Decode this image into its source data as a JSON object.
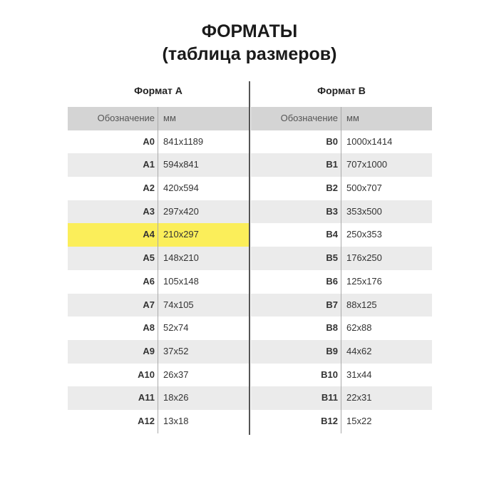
{
  "title": "ФОРМАТЫ",
  "subtitle": "(таблица размеров)",
  "tables": [
    {
      "caption": "Формат A",
      "col1": "Обозначение",
      "col2": "мм",
      "highlight_color": "#fbee5a",
      "highlighted": "A4",
      "rows": [
        [
          "A0",
          "841x1189"
        ],
        [
          "A1",
          "594x841"
        ],
        [
          "A2",
          "420x594"
        ],
        [
          "A3",
          "297x420"
        ],
        [
          "A4",
          "210x297"
        ],
        [
          "A5",
          "148x210"
        ],
        [
          "A6",
          "105x148"
        ],
        [
          "A7",
          "74x105"
        ],
        [
          "A8",
          "52x74"
        ],
        [
          "A9",
          "37x52"
        ],
        [
          "A10",
          "26x37"
        ],
        [
          "A11",
          "18x26"
        ],
        [
          "A12",
          "13x18"
        ]
      ]
    },
    {
      "caption": "Формат B",
      "col1": "Обозначение",
      "col2": "мм",
      "rows": [
        [
          "B0",
          "1000x1414"
        ],
        [
          "B1",
          "707x1000"
        ],
        [
          "B2",
          "500x707"
        ],
        [
          "B3",
          "353x500"
        ],
        [
          "B4",
          "250x353"
        ],
        [
          "B5",
          "176x250"
        ],
        [
          "B6",
          "125x176"
        ],
        [
          "B7",
          "88x125"
        ],
        [
          "B8",
          "62x88"
        ],
        [
          "B9",
          "44x62"
        ],
        [
          "B10",
          "31x44"
        ],
        [
          "B11",
          "22x31"
        ],
        [
          "B12",
          "15x22"
        ]
      ]
    }
  ]
}
